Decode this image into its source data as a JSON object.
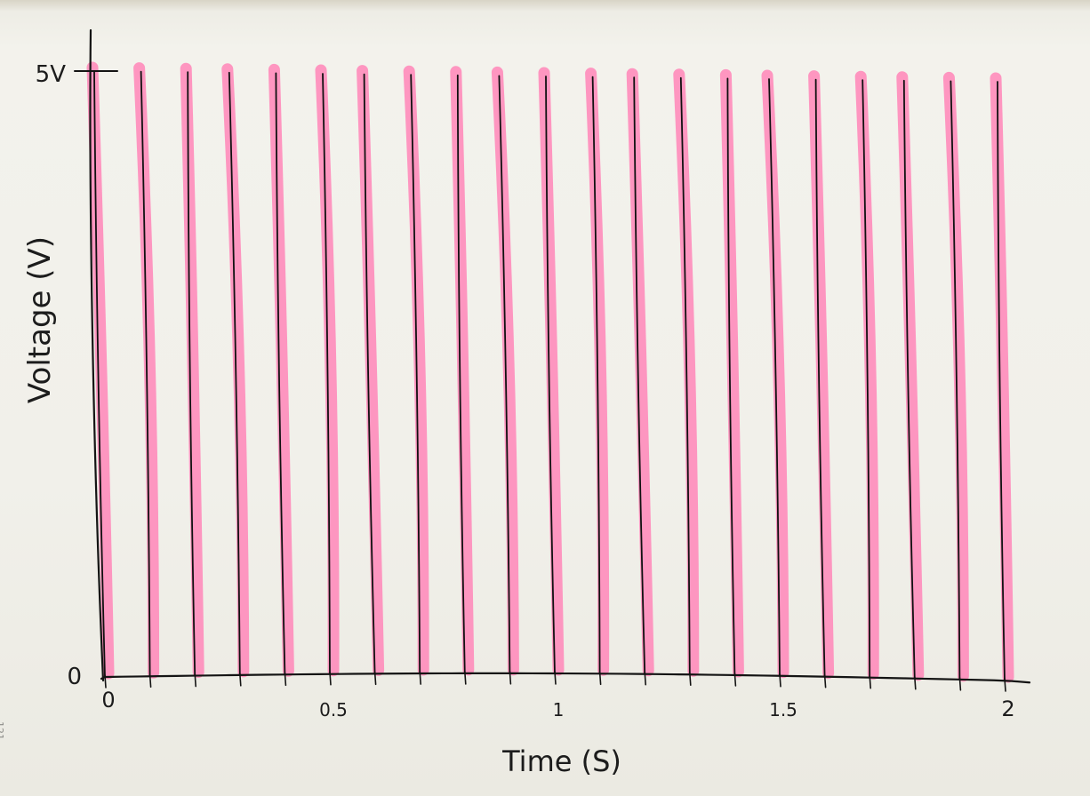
{
  "page": {
    "number": "121"
  },
  "chart_data": {
    "type": "line",
    "title": "",
    "xlabel": "Time (S)",
    "ylabel": "Voltage (V)",
    "xlim": [
      0,
      2
    ],
    "ylim": [
      0,
      5
    ],
    "x_ticks": [
      {
        "value": 0,
        "label": "0"
      },
      {
        "value": 0.5,
        "label": "0.5"
      },
      {
        "value": 1,
        "label": "1"
      },
      {
        "value": 1.5,
        "label": "1.5"
      },
      {
        "value": 2,
        "label": "2"
      }
    ],
    "y_ticks": [
      {
        "value": 0,
        "label": "0"
      },
      {
        "value": 5,
        "label": "5V"
      }
    ],
    "grid": false,
    "legend": "none",
    "series": [
      {
        "style": "spikes",
        "baseline_v": 0,
        "spike_v": 5,
        "spike_times_s": [
          0,
          0.1,
          0.2,
          0.3,
          0.4,
          0.5,
          0.6,
          0.7,
          0.8,
          0.9,
          1.0,
          1.1,
          1.2,
          1.3,
          1.4,
          1.5,
          1.6,
          1.7,
          1.8,
          1.9,
          2.0
        ],
        "line_color": "#111111",
        "highlight_color": "#ff86b8"
      }
    ]
  }
}
